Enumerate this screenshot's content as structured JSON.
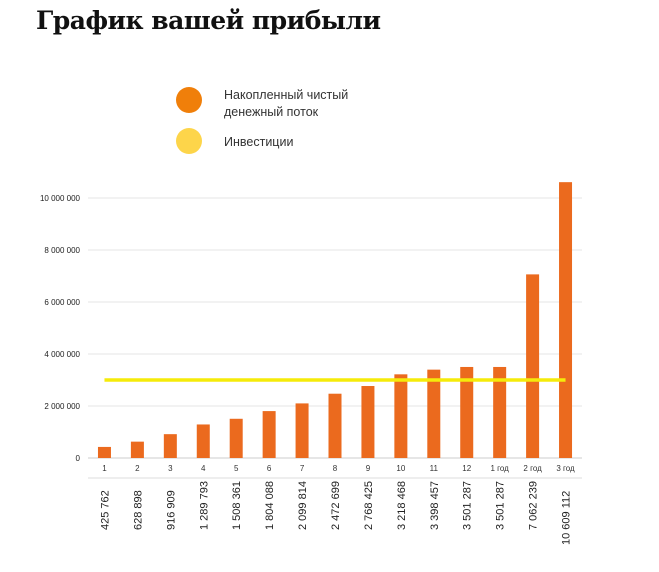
{
  "title": "График вашей прибыли",
  "chart_data": {
    "type": "bar",
    "categories": [
      "1",
      "2",
      "3",
      "4",
      "5",
      "6",
      "7",
      "8",
      "9",
      "10",
      "11",
      "12",
      "1 год",
      "2 год",
      "3 год"
    ],
    "series": [
      {
        "name": "Накопленный чистый денежный поток",
        "type": "bar",
        "color": "#EB6A1E",
        "values": [
          425762,
          628898,
          916909,
          1289793,
          1508361,
          1804088,
          2099814,
          2472699,
          2768425,
          3218468,
          3398457,
          3501287,
          3501287,
          7062239,
          10609112
        ]
      },
      {
        "name": "Инвестиции",
        "type": "line",
        "color": "#F5EB0A",
        "values": [
          3000000,
          3000000,
          3000000,
          3000000,
          3000000,
          3000000,
          3000000,
          3000000,
          3000000,
          3000000,
          3000000,
          3000000,
          3000000,
          3000000,
          3000000
        ]
      }
    ],
    "value_labels": [
      "425 762",
      "628 898",
      "916 909",
      "1 289 793",
      "1 508 361",
      "1 804 088",
      "2 099 814",
      "2 472 699",
      "2 768 425",
      "3 218 468",
      "3 398 457",
      "3 501 287",
      "3 501 287",
      "7 062 239",
      "10 609 112"
    ],
    "yticks": [
      0,
      2000000,
      4000000,
      6000000,
      8000000,
      10000000
    ],
    "ytick_labels": [
      "0",
      "2 000 000",
      "4 000 000",
      "6 000 000",
      "8 000 000",
      "10 000 000"
    ],
    "ylim": [
      0,
      10000000
    ],
    "grid": true,
    "legend": {
      "placement": "top",
      "items": [
        {
          "label_line1": "Накопленный чистый",
          "label_line2": "денежный поток",
          "color": "#F07F0A"
        },
        {
          "label_line1": "Инвестиции",
          "color": "#FDD54A"
        }
      ]
    }
  }
}
